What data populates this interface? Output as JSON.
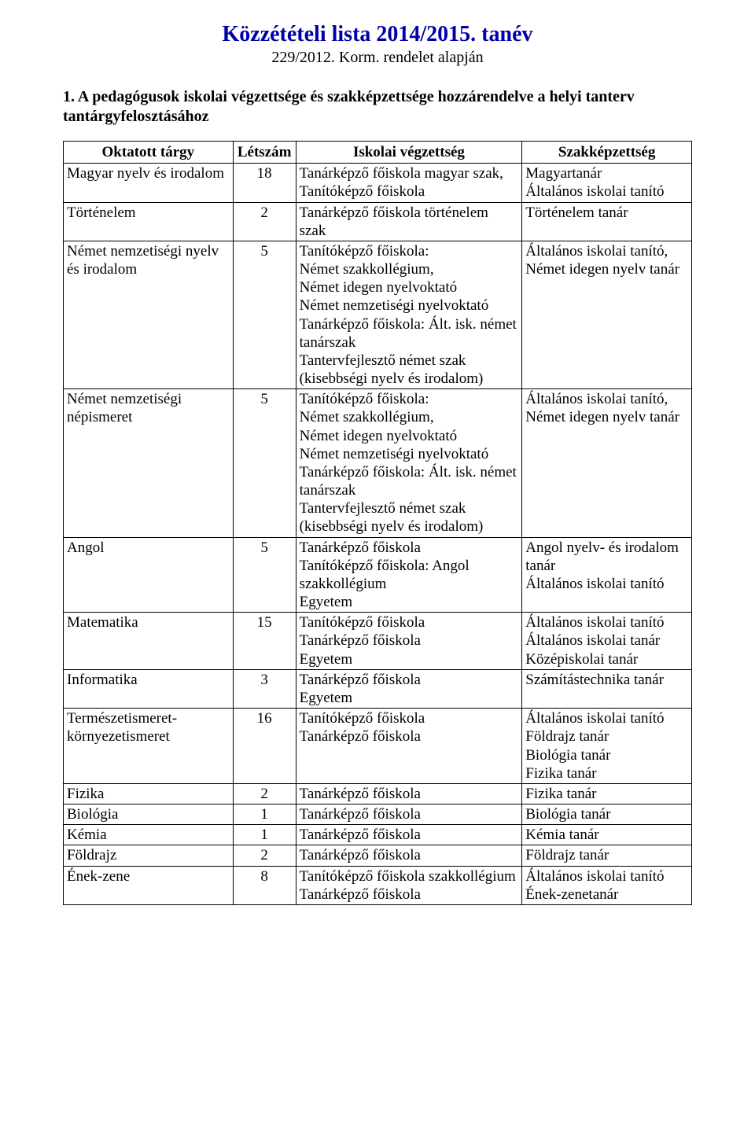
{
  "colors": {
    "title": "#0000aa",
    "text": "#000000",
    "border": "#000000",
    "background": "#ffffff"
  },
  "typography": {
    "family": "Times New Roman",
    "title_fontsize": 28,
    "subtitle_fontsize": 20,
    "heading_fontsize": 20,
    "cell_fontsize": 19
  },
  "header": {
    "title": "Közzétételi lista 2014/2015. tanév",
    "subtitle": "229/2012. Korm. rendelet alapján"
  },
  "section": {
    "number": "1.",
    "heading": "A pedagógusok iskolai végzettsége és szakképzettsége hozzárendelve a helyi tanterv tantárgyfelosztásához"
  },
  "table": {
    "columns": [
      "Oktatott tárgy",
      "Létszám",
      "Iskolai végzettség",
      "Szakképzettség"
    ],
    "col_widths_pct": [
      27,
      10,
      36,
      27
    ],
    "rows": [
      {
        "subject": "Magyar nyelv és irodalom",
        "count": "18",
        "degree": "Tanárképző főiskola magyar szak,\nTanítóképző főiskola",
        "qual": "Magyartanár\nÁltalános iskolai tanító"
      },
      {
        "subject": "Történelem",
        "count": "2",
        "degree": "Tanárképző főiskola történelem szak",
        "qual": "Történelem tanár"
      },
      {
        "subject": "Német nemzetiségi nyelv és irodalom",
        "count": "5",
        "degree": "Tanítóképző főiskola:\nNémet szakkollégium,\nNémet idegen nyelvoktató\nNémet nemzetiségi nyelvoktató\nTanárképző főiskola: Ált. isk. német tanárszak\nTantervfejlesztő német szak (kisebbségi nyelv és irodalom)",
        "qual": "Általános iskolai tanító,\nNémet idegen nyelv tanár"
      },
      {
        "subject": "Német nemzetiségi népismeret",
        "count": "5",
        "degree": "Tanítóképző főiskola:\nNémet szakkollégium,\nNémet idegen nyelvoktató\nNémet nemzetiségi nyelvoktató\nTanárképző főiskola: Ált. isk. német tanárszak\nTantervfejlesztő német szak (kisebbségi nyelv és irodalom)",
        "qual": "Általános iskolai tanító,\nNémet idegen nyelv tanár"
      },
      {
        "subject": "Angol",
        "count": "5",
        "degree": "Tanárképző főiskola\nTanítóképző főiskola: Angol szakkollégium\nEgyetem",
        "qual": "Angol nyelv- és irodalom tanár\nÁltalános iskolai tanító"
      },
      {
        "subject": "Matematika",
        "count": "15",
        "degree": "Tanítóképző főiskola\nTanárképző főiskola\nEgyetem",
        "qual": "Általános iskolai tanító\nÁltalános iskolai tanár\nKözépiskolai tanár"
      },
      {
        "subject": "Informatika",
        "count": "3",
        "degree": "Tanárképző főiskola\nEgyetem",
        "qual": "Számítástechnika tanár"
      },
      {
        "subject": "Természetismeret-környezetismeret",
        "count": "16",
        "degree": "Tanítóképző főiskola\nTanárképző főiskola",
        "qual": "Általános iskolai tanító\nFöldrajz tanár\nBiológia tanár\nFizika tanár"
      },
      {
        "subject": "Fizika",
        "count": "2",
        "degree": "Tanárképző főiskola",
        "qual": "Fizika tanár"
      },
      {
        "subject": "Biológia",
        "count": "1",
        "degree": "Tanárképző főiskola",
        "qual": "Biológia tanár"
      },
      {
        "subject": "Kémia",
        "count": "1",
        "degree": "Tanárképző főiskola",
        "qual": "Kémia tanár"
      },
      {
        "subject": "Földrajz",
        "count": "2",
        "degree": "Tanárképző főiskola",
        "qual": "Földrajz tanár"
      },
      {
        "subject": "Ének-zene",
        "count": "8",
        "degree": "Tanítóképző főiskola szakkollégium\n Tanárképző főiskola",
        "qual": "Általános iskolai tanító\n\nÉnek-zenetanár"
      }
    ]
  }
}
